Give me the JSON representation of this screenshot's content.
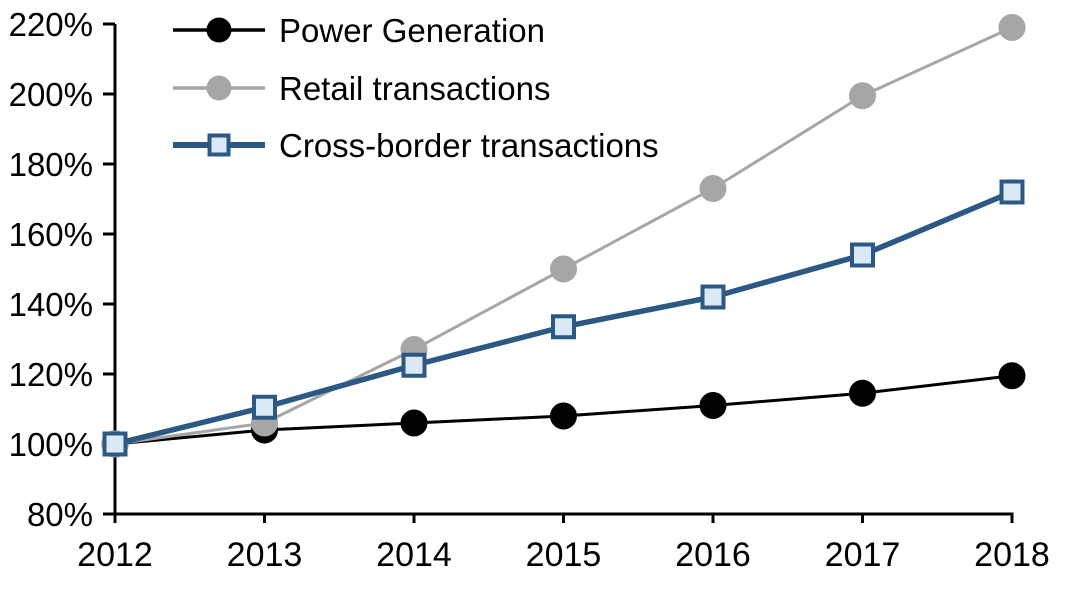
{
  "chart_data": {
    "type": "line",
    "title": "",
    "xlabel": "",
    "ylabel": "",
    "x_categories": [
      "2012",
      "2013",
      "2014",
      "2015",
      "2016",
      "2017",
      "2018"
    ],
    "y_tick_labels": [
      "80%",
      "100%",
      "120%",
      "140%",
      "160%",
      "180%",
      "200%",
      "220%"
    ],
    "ylim": [
      80,
      220
    ],
    "ytick_step": 20,
    "grid": false,
    "legend_position": "top-left-inside",
    "background_color": "#ffffff",
    "axis_color": "#000000",
    "series": [
      {
        "name": "Power Generation",
        "values": [
          100,
          104,
          106,
          108,
          111,
          114.5,
          119.5
        ],
        "line_color": "#000000",
        "line_width": 3,
        "marker": "circle",
        "marker_fill": "#000000",
        "marker_border": "#000000",
        "marker_size": 26
      },
      {
        "name": "Retail transactions",
        "values": [
          100,
          106,
          127,
          150,
          173,
          199.5,
          219
        ],
        "line_color": "#a6a6a6",
        "line_width": 3,
        "marker": "circle",
        "marker_fill": "#a6a6a6",
        "marker_border": "#a6a6a6",
        "marker_size": 26
      },
      {
        "name": "Cross-border transactions",
        "values": [
          100,
          110.5,
          122.5,
          133.5,
          142,
          154,
          172
        ],
        "line_color": "#2c5884",
        "line_width": 5.5,
        "marker": "square",
        "marker_fill": "#dbe8f6",
        "marker_border": "#2c5884",
        "marker_size": 25
      }
    ]
  }
}
